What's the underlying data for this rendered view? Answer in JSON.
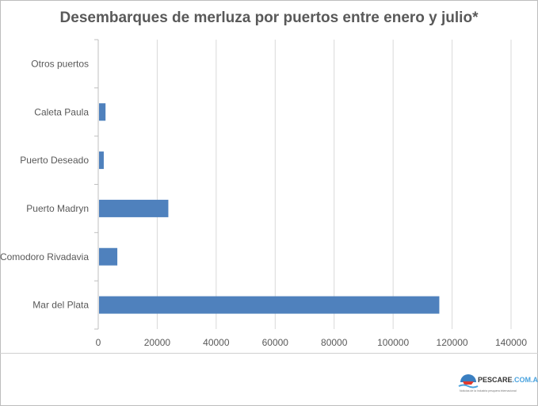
{
  "chart_data": {
    "type": "bar",
    "orientation": "horizontal",
    "title": "Desembarques de merluza por puertos entre enero y julio*",
    "categories": [
      "Mar del Plata",
      "Comodoro Rivadavia",
      "Puerto Madryn",
      "Puerto Deseado",
      "Caleta Paula",
      "Otros puertos"
    ],
    "values": [
      115400,
      6200,
      23500,
      1600,
      2200,
      0
    ],
    "xlim": [
      0,
      140000
    ],
    "xticks": [
      0,
      20000,
      40000,
      60000,
      80000,
      100000,
      120000,
      140000
    ],
    "xtick_labels": [
      "0",
      "20000",
      "40000",
      "60000",
      "80000",
      "100000",
      "120000",
      "140000"
    ],
    "grid": true,
    "bar_color": "#4f81bd"
  },
  "logo": {
    "name_main": "PESCARE",
    "name_domain": ".COM.AR",
    "tagline": "Noticias de la industria pesquera internacional"
  }
}
